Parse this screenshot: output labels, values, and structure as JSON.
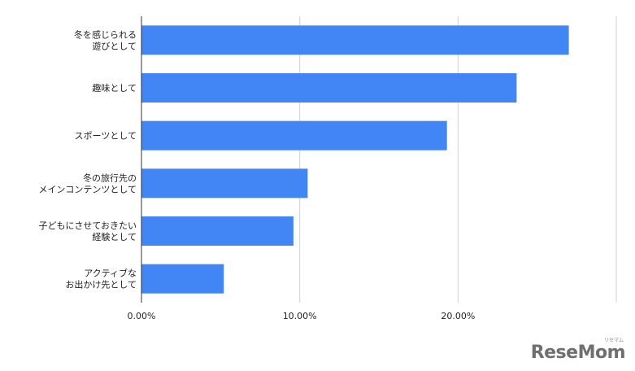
{
  "chart_data": {
    "type": "bar",
    "orientation": "horizontal",
    "categories": [
      [
        "冬を感じられる",
        "遊びとして"
      ],
      [
        "趣味として"
      ],
      [
        "スポーツとして"
      ],
      [
        "冬の旅行先の",
        "メインコンテンツとして"
      ],
      [
        "子どもにさせておきたい",
        "経験として"
      ],
      [
        "アクティブな",
        "お出かけ先として"
      ]
    ],
    "values": [
      27.0,
      23.7,
      19.3,
      10.5,
      9.6,
      5.2
    ],
    "xticks": [
      "0.00%",
      "10.00%",
      "20.00%"
    ],
    "xlim": [
      0,
      30
    ],
    "grid": true,
    "bar_color": "#4285f4",
    "title": "",
    "xlabel": "",
    "ylabel": ""
  },
  "watermark": {
    "text": "ReseMom",
    "small": "リセマム"
  }
}
